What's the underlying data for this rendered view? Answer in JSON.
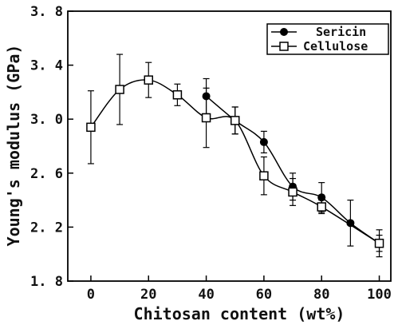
{
  "chart_data": {
    "type": "line",
    "xlabel": "Chitosan content (wt%)",
    "ylabel": "Young's modulus (GPa)",
    "xlim": [
      -8,
      104
    ],
    "ylim": [
      1.8,
      3.8
    ],
    "xticks": [
      0,
      20,
      40,
      60,
      80,
      100
    ],
    "xtick_labels": [
      "0",
      "20",
      "40",
      "60",
      "80",
      "100"
    ],
    "yticks": [
      1.8,
      2.2,
      2.6,
      3.0,
      3.4,
      3.8
    ],
    "ytick_labels": [
      "1. 8",
      "2. 2",
      "2. 6",
      "3. 0",
      "3. 4",
      "3. 8"
    ],
    "legend_position": "top-right",
    "series": [
      {
        "name": "Sericin",
        "marker": "filled-circle",
        "color": "#000000",
        "x": [
          40,
          50,
          60,
          70,
          80,
          90,
          100
        ],
        "y": [
          3.17,
          2.99,
          2.83,
          2.5,
          2.42,
          2.23,
          2.08
        ],
        "err": [
          0.13,
          0.1,
          0.08,
          0.1,
          0.11,
          0.17,
          0.1
        ]
      },
      {
        "name": "Cellulose",
        "marker": "open-square",
        "color": "#000000",
        "x": [
          0,
          10,
          20,
          30,
          40,
          50,
          60,
          70,
          80,
          100
        ],
        "y": [
          2.94,
          3.22,
          3.29,
          3.18,
          3.01,
          2.99,
          2.58,
          2.46,
          2.35,
          2.08
        ],
        "err": [
          0.27,
          0.26,
          0.13,
          0.08,
          0.22,
          0.1,
          0.14,
          0.1,
          0.05,
          0.06
        ]
      }
    ]
  }
}
